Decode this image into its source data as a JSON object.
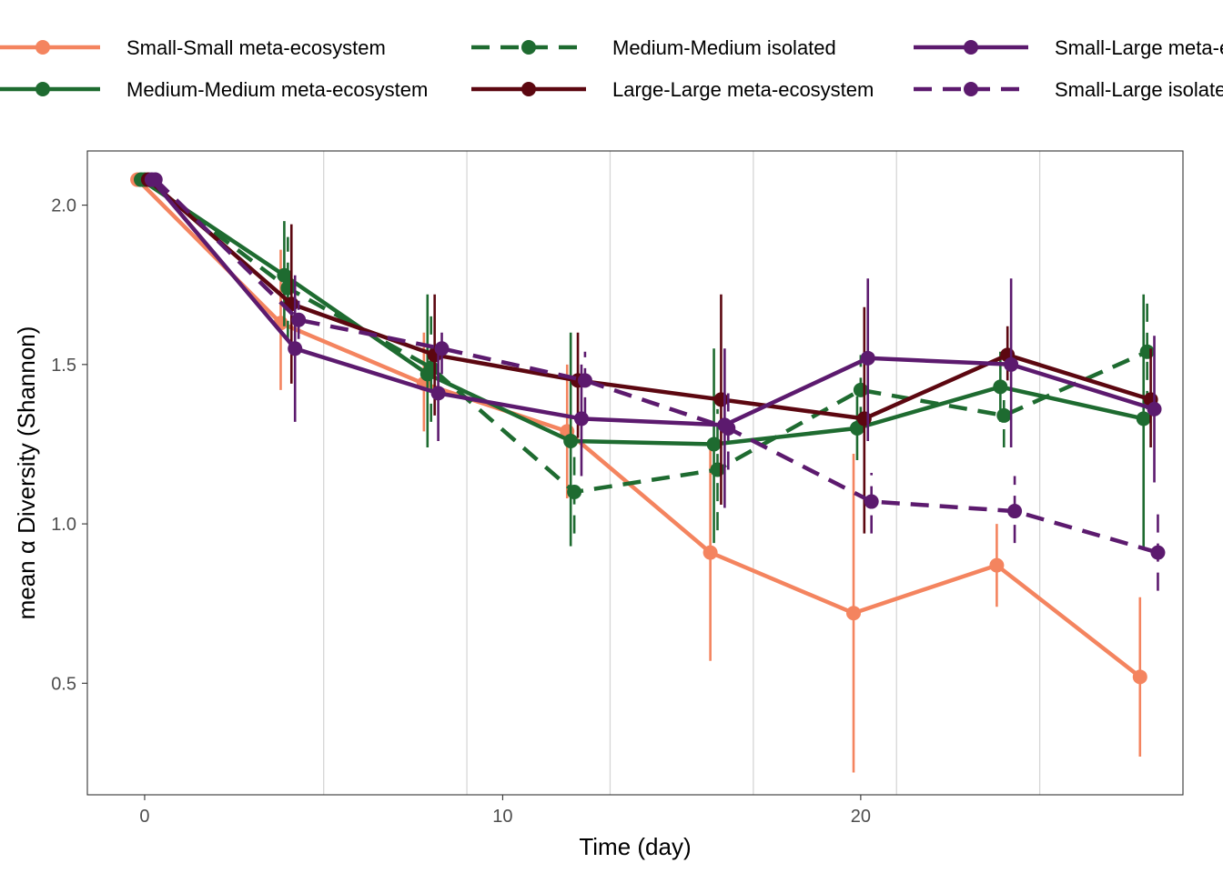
{
  "chart_data": {
    "type": "line",
    "xlabel": "Time (day)",
    "ylabel": "mean α Diversity (Shannon)",
    "xlim": [
      -1.6,
      29.0
    ],
    "ylim": [
      0.15,
      2.17
    ],
    "x_ticks": [
      0,
      10,
      20
    ],
    "x_tick_labels": [
      "0",
      "10",
      "20"
    ],
    "y_ticks": [
      0.5,
      1.0,
      1.5,
      2.0
    ],
    "y_tick_labels": [
      "0.5",
      "1.0",
      "1.5",
      "2.0"
    ],
    "vertical_gridlines": [
      5,
      9,
      13,
      17,
      21,
      25
    ],
    "legend_position": "top",
    "series": [
      {
        "name": "Small-Small meta-ecosystem",
        "color": "#f4845f",
        "dashed": false,
        "x": [
          -0.2,
          3.8,
          7.8,
          11.8,
          15.8,
          19.8,
          23.8,
          27.8
        ],
        "y": [
          2.08,
          1.63,
          1.44,
          1.29,
          0.91,
          0.72,
          0.87,
          0.52
        ],
        "err_low": [
          2.08,
          1.42,
          1.29,
          1.08,
          0.57,
          0.22,
          0.74,
          0.27
        ],
        "err_high": [
          2.08,
          1.86,
          1.6,
          1.5,
          1.26,
          1.22,
          1.0,
          0.77
        ]
      },
      {
        "name": "Medium-Medium meta-ecosystem",
        "color": "#1e6b30",
        "dashed": false,
        "x": [
          -0.1,
          3.9,
          7.9,
          11.9,
          15.9,
          19.9,
          23.9,
          27.9
        ],
        "y": [
          2.08,
          1.78,
          1.47,
          1.26,
          1.25,
          1.3,
          1.43,
          1.33
        ],
        "err_low": [
          2.08,
          1.62,
          1.24,
          0.93,
          0.94,
          1.2,
          1.32,
          0.92
        ],
        "err_high": [
          2.08,
          1.95,
          1.72,
          1.6,
          1.55,
          1.4,
          1.54,
          1.72
        ]
      },
      {
        "name": "Medium-Medium isolated",
        "color": "#1e6b30",
        "dashed": true,
        "x": [
          0.0,
          4.0,
          8.0,
          12.0,
          16.0,
          20.0,
          24.0,
          28.0
        ],
        "y": [
          2.08,
          1.74,
          1.49,
          1.1,
          1.17,
          1.42,
          1.34,
          1.54
        ],
        "err_low": [
          2.08,
          1.58,
          1.32,
          0.97,
          0.98,
          1.31,
          1.24,
          1.36
        ],
        "err_high": [
          2.08,
          1.9,
          1.66,
          1.23,
          1.36,
          1.53,
          1.44,
          1.72
        ]
      },
      {
        "name": "Large-Large meta-ecosystem",
        "color": "#5c0710",
        "dashed": false,
        "x": [
          0.1,
          4.1,
          8.1,
          12.1,
          16.1,
          20.1,
          24.1,
          28.1
        ],
        "y": [
          2.08,
          1.69,
          1.53,
          1.45,
          1.39,
          1.33,
          1.53,
          1.39
        ],
        "err_low": [
          2.08,
          1.44,
          1.34,
          1.27,
          1.06,
          0.97,
          1.45,
          1.24
        ],
        "err_high": [
          2.08,
          1.94,
          1.72,
          1.6,
          1.72,
          1.68,
          1.62,
          1.55
        ]
      },
      {
        "name": "Small-Large meta-ecosystem",
        "color": "#5c1a6e",
        "dashed": false,
        "x": [
          0.2,
          4.2,
          8.2,
          12.2,
          16.2,
          20.2,
          24.2,
          28.2
        ],
        "y": [
          2.08,
          1.55,
          1.41,
          1.33,
          1.31,
          1.52,
          1.5,
          1.36
        ],
        "err_low": [
          2.08,
          1.32,
          1.26,
          1.15,
          1.05,
          1.26,
          1.24,
          1.13
        ],
        "err_high": [
          2.08,
          1.78,
          1.55,
          1.5,
          1.55,
          1.77,
          1.77,
          1.59
        ]
      },
      {
        "name": "Small-Large isolated",
        "color": "#5c1a6e",
        "dashed": true,
        "x": [
          0.3,
          4.3,
          8.3,
          12.3,
          16.3,
          20.3,
          24.3,
          28.3
        ],
        "y": [
          2.08,
          1.64,
          1.55,
          1.45,
          1.3,
          1.07,
          1.04,
          0.91
        ],
        "err_low": [
          2.08,
          1.58,
          1.47,
          1.34,
          1.17,
          0.97,
          0.94,
          0.79
        ],
        "err_high": [
          2.08,
          1.7,
          1.6,
          1.54,
          1.44,
          1.16,
          1.15,
          1.03
        ]
      }
    ]
  }
}
